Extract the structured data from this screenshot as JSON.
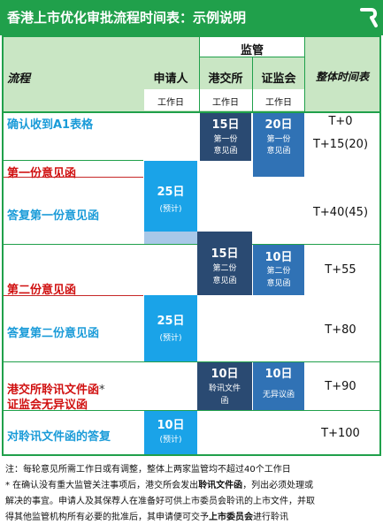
{
  "title": "香港上市优化审批流程时间表：示例说明",
  "logo_icon": "r-logo-icon",
  "headers": {
    "process": "流程",
    "applicant": "申请人",
    "regulator": "监管",
    "hkex": "港交所",
    "csrc": "证监会",
    "overall": "整体时间表",
    "workday_applicant": "工作日",
    "workday_hkex": "工作日",
    "workday_csrc": "工作日"
  },
  "rows": {
    "r1": "确认收到A1表格",
    "r2": "第一份意见函",
    "r3": "答复第一份意见函",
    "r4": "第二份意见函",
    "r5": "答复第二份意见函",
    "r6_line1": "港交所聆讯文件函",
    "r6_star": "*",
    "r6_line2": "证监会无异议函",
    "r7": "对聆讯文件函的答复"
  },
  "blocks": {
    "hkex1_days": "15日",
    "hkex1_sub1": "第一份",
    "hkex1_sub2": "意见函",
    "csrc1_days": "20日",
    "csrc1_sub1": "第一份",
    "csrc1_sub2": "意见函",
    "app1_days": "25日",
    "app1_sub": "(预计)",
    "hkex2_days": "15日",
    "hkex2_sub1": "第二份",
    "hkex2_sub2": "意见函",
    "csrc2_days": "10日",
    "csrc2_sub1": "第二份",
    "csrc2_sub2": "意见函",
    "app2_days": "25日",
    "app2_sub": "(预计)",
    "hkex3_days": "10日",
    "hkex3_sub1": "聆讯文件",
    "hkex3_sub2": "函",
    "csrc3_days": "10日",
    "csrc3_sub1": "无异议函",
    "app3_days": "10日",
    "app3_sub": "(预计)"
  },
  "timeline": {
    "t1": "T+0",
    "t2": "T+15(20)",
    "t3": "T+40(45)",
    "t4": "T+55",
    "t5": "T+80",
    "t6": "T+90",
    "t7": "T+100"
  },
  "notes": {
    "line1": "注：每轮意见所需工作日或有调整，整体上两家监管均不超过40个工作日",
    "line2_a": "* 在确认没有重大监管关注事项后，港交所会发出",
    "line2_b": "聆讯文件函",
    "line2_c": "，列出必须处理或",
    "line3": "解决的事宜。申请人及其保荐人在准备好可供上市委员会聆讯的上市文件，并取",
    "line4_a": "得其他监管机构所有必要的批准后，其申请便可交予",
    "line4_b": "上市委员会",
    "line4_c": "进行聆讯"
  },
  "colors": {
    "brand_green": "#20a04b",
    "header_green": "#c9e6c4",
    "hkex_navy": "#2a4a72",
    "csrc_blue": "#3072b5",
    "applicant_sky": "#1aa3e8",
    "step_blue_text": "#1a9bd8",
    "step_red_text": "#d01010"
  },
  "chart_data": {
    "type": "table",
    "title": "香港上市优化审批流程时间表：示例说明",
    "columns": [
      "流程",
      "申请人 工作日",
      "港交所 工作日",
      "证监会 工作日",
      "整体时间表"
    ],
    "rows": [
      [
        "确认收到A1表格",
        "",
        "15日 第一份意见函",
        "20日 第一份意见函",
        "T+0"
      ],
      [
        "第一份意见函",
        "",
        "",
        "",
        "T+15(20)"
      ],
      [
        "答复第一份意见函",
        "25日 (预计)",
        "",
        "",
        "T+40(45)"
      ],
      [
        "第二份意见函",
        "",
        "15日 第二份意见函",
        "10日 第二份意见函",
        "T+55"
      ],
      [
        "答复第二份意见函",
        "25日 (预计)",
        "",
        "",
        "T+80"
      ],
      [
        "港交所聆讯文件函* 证监会无异议函",
        "",
        "10日 聆讯文件函",
        "10日 无异议函",
        "T+90"
      ],
      [
        "对聆讯文件函的答复",
        "10日 (预计)",
        "",
        "",
        "T+100"
      ]
    ]
  }
}
